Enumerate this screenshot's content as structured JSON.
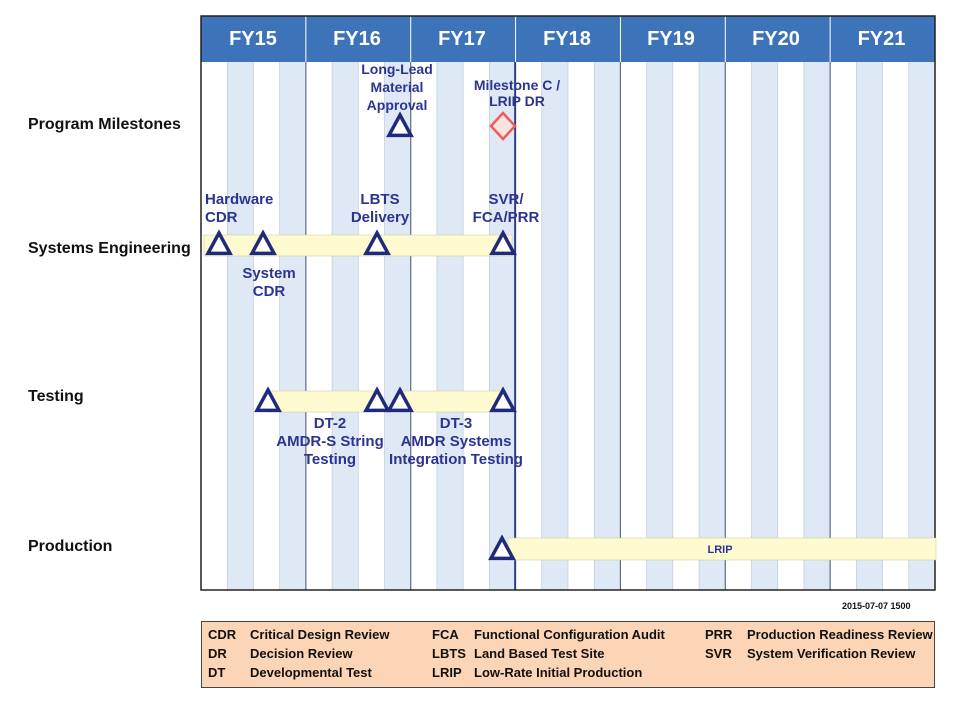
{
  "fiscal_years": [
    "FY15",
    "FY16",
    "FY17",
    "FY18",
    "FY19",
    "FY20",
    "FY21"
  ],
  "rows": [
    {
      "id": "milestones",
      "label": "Program Milestones"
    },
    {
      "id": "systems",
      "label": "Systems Engineering"
    },
    {
      "id": "testing",
      "label": "Testing"
    },
    {
      "id": "production",
      "label": "Production"
    }
  ],
  "events": [
    {
      "row": "milestones",
      "name": "Long-Lead Material Approval",
      "lines": [
        "Long-Lead",
        "Material",
        "Approval"
      ],
      "shape": "triangle"
    },
    {
      "row": "milestones",
      "name": "Milestone C / LRIP DR",
      "lines": [
        "Milestone C /",
        "LRIP DR"
      ],
      "shape": "diamond"
    },
    {
      "row": "systems",
      "name": "Hardware CDR",
      "lines": [
        "Hardware",
        "CDR"
      ],
      "shape": "triangle"
    },
    {
      "row": "systems",
      "name": "System CDR",
      "lines": [
        "System",
        "CDR"
      ],
      "shape": "triangle"
    },
    {
      "row": "systems",
      "name": "LBTS Delivery",
      "lines": [
        "LBTS",
        "Delivery"
      ],
      "shape": "triangle"
    },
    {
      "row": "systems",
      "name": "SVR/FCA/PRR",
      "lines": [
        "SVR/",
        "FCA/PRR"
      ],
      "shape": "triangle"
    },
    {
      "row": "testing",
      "name": "DT-2 AMDR-S String Testing",
      "lines": [
        "DT-2",
        "AMDR-S String",
        "Testing"
      ],
      "shape": "bar"
    },
    {
      "row": "testing",
      "name": "DT-3 AMDR Systems Integration Testing",
      "lines": [
        "DT-3",
        "AMDR Systems",
        "Integration Testing"
      ],
      "shape": "bar"
    },
    {
      "row": "production",
      "name": "LRIP",
      "lines": [
        "LRIP"
      ],
      "shape": "bar"
    }
  ],
  "timestamp": "2015-07-07  1500",
  "legend": [
    {
      "abbr": "CDR",
      "definition": "Critical Design Review"
    },
    {
      "abbr": "DR",
      "definition": "Decision Review"
    },
    {
      "abbr": "DT",
      "definition": "Developmental Test"
    },
    {
      "abbr": "FCA",
      "definition": "Functional Configuration Audit"
    },
    {
      "abbr": "LBTS",
      "definition": "Land Based Test Site"
    },
    {
      "abbr": "LRIP",
      "definition": "Low-Rate Initial Production"
    },
    {
      "abbr": "PRR",
      "definition": "Production Readiness Review"
    },
    {
      "abbr": "SVR",
      "definition": "System Verification Review"
    }
  ],
  "colors": {
    "header": "#3d73b9",
    "shade": "#dfe8f5",
    "bar": "#fdfbcf",
    "triangle": "#1f2a7a",
    "label_text": "#2b3590",
    "diamond": "#f05a5a",
    "legend_bg": "#fbd5b5"
  }
}
